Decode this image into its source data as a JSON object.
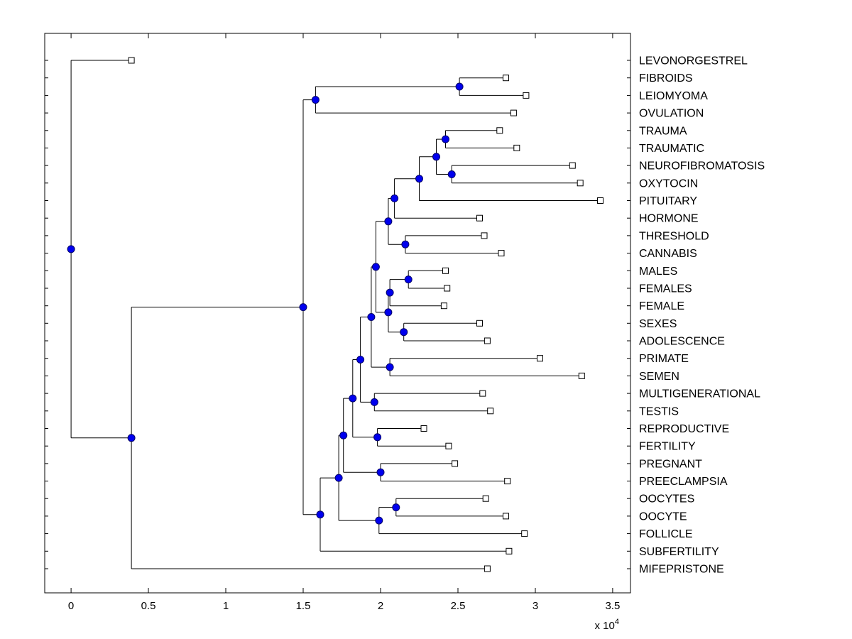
{
  "figure": {
    "background": "#ffffff",
    "line_color": "#000000",
    "node_marker_fill": "#0000ee",
    "node_marker_edge": "#000066",
    "leaf_marker_fill": "#ffffff",
    "leaf_marker_edge": "#000000"
  },
  "chart_data": {
    "type": "dendrogram",
    "orientation": "horizontal",
    "grid": false,
    "legend": "none",
    "x_axis": {
      "range": [
        -1700,
        36150
      ],
      "ticks": [
        0,
        5000,
        10000,
        15000,
        20000,
        25000,
        30000,
        35000
      ],
      "tick_labels": [
        "0",
        "0.5",
        "1",
        "1.5",
        "2",
        "2.5",
        "3",
        "3.5"
      ],
      "multiplier": {
        "base": "x 10",
        "exp": "4"
      }
    },
    "leaves": [
      {
        "label": "LEVONORGESTREL",
        "value": 3900
      },
      {
        "label": "FIBROIDS",
        "value": 28100
      },
      {
        "label": "LEIOMYOMA",
        "value": 29400
      },
      {
        "label": "OVULATION",
        "value": 28600
      },
      {
        "label": "TRAUMA",
        "value": 27700
      },
      {
        "label": "TRAUMATIC",
        "value": 28800
      },
      {
        "label": "NEUROFIBROMATOSIS",
        "value": 32400
      },
      {
        "label": "OXYTOCIN",
        "value": 32900
      },
      {
        "label": "PITUITARY",
        "value": 34200
      },
      {
        "label": "HORMONE",
        "value": 26400
      },
      {
        "label": "THRESHOLD",
        "value": 26700
      },
      {
        "label": "CANNABIS",
        "value": 27800
      },
      {
        "label": "MALES",
        "value": 24200
      },
      {
        "label": "FEMALES",
        "value": 24300
      },
      {
        "label": "FEMALE",
        "value": 24100
      },
      {
        "label": "SEXES",
        "value": 26400
      },
      {
        "label": "ADOLESCENCE",
        "value": 26900
      },
      {
        "label": "PRIMATE",
        "value": 30300
      },
      {
        "label": "SEMEN",
        "value": 33000
      },
      {
        "label": "MULTIGENERATIONAL",
        "value": 26600
      },
      {
        "label": "TESTIS",
        "value": 27100
      },
      {
        "label": "REPRODUCTIVE",
        "value": 22800
      },
      {
        "label": "FERTILITY",
        "value": 24400
      },
      {
        "label": "PREGNANT",
        "value": 24800
      },
      {
        "label": "PREECLAMPSIA",
        "value": 28200
      },
      {
        "label": "OOCYTES",
        "value": 26800
      },
      {
        "label": "OOCYTE",
        "value": 28100
      },
      {
        "label": "FOLLICLE",
        "value": 29300
      },
      {
        "label": "SUBFERTILITY",
        "value": 28300
      },
      {
        "label": "MIFEPRISTONE",
        "value": 26900
      }
    ],
    "tree": {
      "v": 0,
      "c": [
        {
          "leaf": 0
        },
        {
          "v": 3900,
          "c": [
            {
              "v": 15000,
              "c": [
                {
                  "v": 15800,
                  "c": [
                    {
                      "v": 25100,
                      "c": [
                        {
                          "leaf": 1
                        },
                        {
                          "leaf": 2
                        }
                      ]
                    },
                    {
                      "leaf": 3
                    }
                  ]
                },
                {
                  "v": 16100,
                  "c": [
                    {
                      "v": 17300,
                      "c": [
                        {
                          "v": 17600,
                          "c": [
                            {
                              "v": 18200,
                              "c": [
                                {
                                  "v": 18700,
                                  "c": [
                                    {
                                      "v": 19400,
                                      "c": [
                                        {
                                          "v": 19700,
                                          "c": [
                                            {
                                              "v": 20500,
                                              "c": [
                                                {
                                                  "v": 20900,
                                                  "c": [
                                                    {
                                                      "v": 22500,
                                                      "c": [
                                                        {
                                                          "v": 23600,
                                                          "c": [
                                                            {
                                                              "v": 24200,
                                                              "c": [
                                                                {
                                                                  "leaf": 4
                                                                },
                                                                {
                                                                  "leaf": 5
                                                                }
                                                              ]
                                                            },
                                                            {
                                                              "v": 24600,
                                                              "c": [
                                                                {
                                                                  "leaf": 6
                                                                },
                                                                {
                                                                  "leaf": 7
                                                                }
                                                              ]
                                                            }
                                                          ]
                                                        },
                                                        {
                                                          "leaf": 8
                                                        }
                                                      ]
                                                    },
                                                    {
                                                      "leaf": 9
                                                    }
                                                  ]
                                                },
                                                {
                                                  "v": 21600,
                                                  "c": [
                                                    {
                                                      "leaf": 10
                                                    },
                                                    {
                                                      "leaf": 11
                                                    }
                                                  ]
                                                }
                                              ]
                                            },
                                            {
                                              "v": 20500,
                                              "c": [
                                                {
                                                  "v": 20600,
                                                  "c": [
                                                    {
                                                      "v": 21800,
                                                      "c": [
                                                        {
                                                          "leaf": 12
                                                        },
                                                        {
                                                          "leaf": 13
                                                        }
                                                      ]
                                                    },
                                                    {
                                                      "leaf": 14
                                                    }
                                                  ]
                                                },
                                                {
                                                  "v": 21500,
                                                  "c": [
                                                    {
                                                      "leaf": 15
                                                    },
                                                    {
                                                      "leaf": 16
                                                    }
                                                  ]
                                                }
                                              ]
                                            }
                                          ]
                                        },
                                        {
                                          "v": 20600,
                                          "c": [
                                            {
                                              "leaf": 17
                                            },
                                            {
                                              "leaf": 18
                                            }
                                          ]
                                        }
                                      ]
                                    },
                                    {
                                      "v": 19600,
                                      "c": [
                                        {
                                          "leaf": 19
                                        },
                                        {
                                          "leaf": 20
                                        }
                                      ]
                                    }
                                  ]
                                },
                                {
                                  "v": 19800,
                                  "c": [
                                    {
                                      "leaf": 21
                                    },
                                    {
                                      "leaf": 22
                                    }
                                  ]
                                }
                              ]
                            },
                            {
                              "v": 20000,
                              "c": [
                                {
                                  "leaf": 23
                                },
                                {
                                  "leaf": 24
                                }
                              ]
                            }
                          ]
                        },
                        {
                          "v": 19900,
                          "c": [
                            {
                              "v": 21000,
                              "c": [
                                {
                                  "leaf": 25
                                },
                                {
                                  "leaf": 26
                                }
                              ]
                            },
                            {
                              "leaf": 27
                            }
                          ]
                        }
                      ]
                    },
                    {
                      "leaf": 28
                    }
                  ]
                }
              ]
            },
            {
              "leaf": 29
            }
          ]
        }
      ]
    }
  }
}
